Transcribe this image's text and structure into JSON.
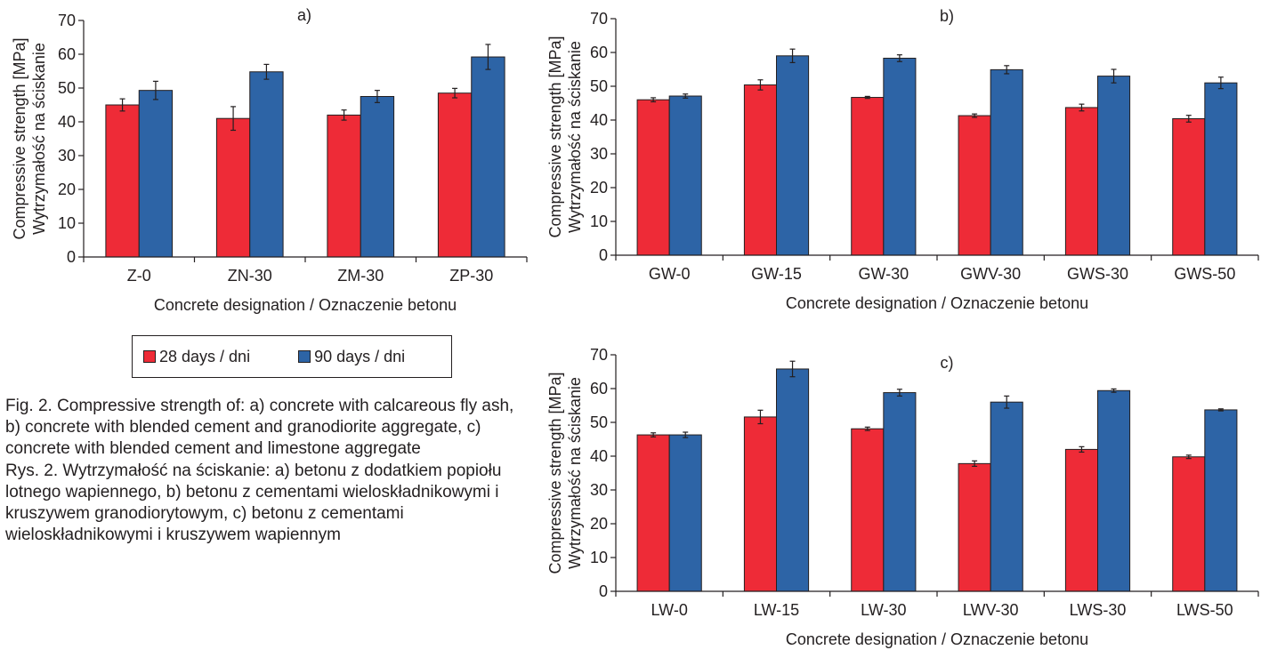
{
  "colors": {
    "days28": "#ee2b37",
    "days90": "#2d64a6",
    "axis": "#231f20"
  },
  "legend": {
    "items": [
      "28 days / dni",
      "90 days / dni"
    ]
  },
  "caption": {
    "en": "Fig. 2. Compressive strength of: a) concrete with calcareous fly ash, b) concrete with blended cement and granodiorite aggregate, c) concrete with blended cement and limestone aggregate",
    "pl": "Rys. 2. Wytrzymałość na ściskanie: a) betonu z dodatkiem popiołu lotnego wapiennego, b) betonu z cementami wieloskładnikowymi i kruszywem granodiorytowym, c) betonu z cementami wieloskładnikowymi i kruszywem wapiennym"
  },
  "chart_data": [
    {
      "type": "bar",
      "panel": "a)",
      "categories": [
        "Z-0",
        "ZN-30",
        "ZM-30",
        "ZP-30"
      ],
      "series": [
        {
          "name": "28 days / dni",
          "values": [
            45,
            41,
            42,
            48.5
          ],
          "errors": [
            1.8,
            3.5,
            1.5,
            1.4
          ]
        },
        {
          "name": "90 days / dni",
          "values": [
            49.3,
            54.8,
            47.5,
            59.2
          ],
          "errors": [
            2.7,
            2.2,
            1.8,
            3.7
          ]
        }
      ],
      "xlabel": "Concrete designation / Oznaczenie betonu",
      "ylabel": [
        "Compressive strength [MPa]",
        "Wytrzymałość na ściskanie"
      ],
      "ylim": [
        0,
        70
      ],
      "yticks": [
        0,
        10,
        20,
        30,
        40,
        50,
        60,
        70
      ]
    },
    {
      "type": "bar",
      "panel": "b)",
      "categories": [
        "GW-0",
        "GW-15",
        "GW-30",
        "GWV-30",
        "GWS-30",
        "GWS-50"
      ],
      "series": [
        {
          "name": "28 days / dni",
          "values": [
            46,
            50.4,
            46.7,
            41.3,
            43.7,
            40.4
          ],
          "errors": [
            0.6,
            1.5,
            0.3,
            0.5,
            1.0,
            1.0
          ]
        },
        {
          "name": "90 days / dni",
          "values": [
            47.1,
            59,
            58.3,
            54.9,
            53,
            51
          ],
          "errors": [
            0.6,
            2.0,
            1.0,
            1.2,
            2.0,
            1.7
          ]
        }
      ],
      "xlabel": "Concrete designation / Oznaczenie betonu",
      "ylabel": [
        "Compressive strength [MPa]",
        "Wytrzymałość na ściskanie"
      ],
      "ylim": [
        0,
        70
      ],
      "yticks": [
        0,
        10,
        20,
        30,
        40,
        50,
        60,
        70
      ]
    },
    {
      "type": "bar",
      "panel": "c)",
      "categories": [
        "LW-0",
        "LW-15",
        "LW-30",
        "LWV-30",
        "LWS-30",
        "LWS-50"
      ],
      "series": [
        {
          "name": "28 days / dni",
          "values": [
            46.3,
            51.6,
            48.1,
            37.8,
            42,
            39.8
          ],
          "errors": [
            0.6,
            2.0,
            0.5,
            0.8,
            0.8,
            0.5
          ]
        },
        {
          "name": "90 days / dni",
          "values": [
            46.3,
            65.8,
            58.8,
            56,
            59.4,
            53.7
          ],
          "errors": [
            0.8,
            2.3,
            1.0,
            1.8,
            0.5,
            0.3
          ]
        }
      ],
      "xlabel": "Concrete designation / Oznaczenie betonu",
      "ylabel": [
        "Compressive strength [MPa]",
        "Wytrzymałość na ściskanie"
      ],
      "ylim": [
        0,
        70
      ],
      "yticks": [
        0,
        10,
        20,
        30,
        40,
        50,
        60,
        70
      ]
    }
  ]
}
